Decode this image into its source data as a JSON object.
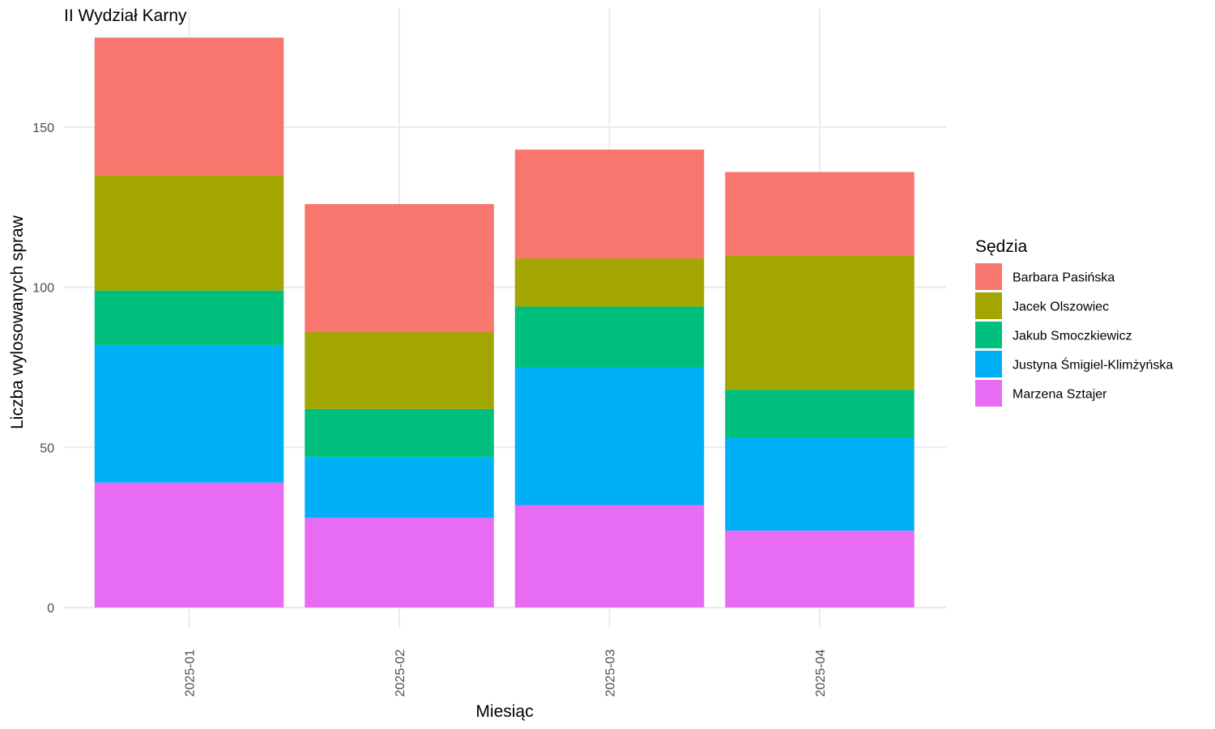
{
  "chart_data": {
    "type": "bar",
    "stacked": true,
    "title": "II Wydział Karny",
    "xlabel": "Miesiąc",
    "ylabel": "Liczba wylosowanych spraw",
    "categories": [
      "2025-01",
      "2025-02",
      "2025-03",
      "2025-04"
    ],
    "ylim": [
      0,
      180
    ],
    "yticks": [
      0,
      50,
      100,
      150
    ],
    "grid": true,
    "legend": {
      "title": "Sędzia",
      "position": "right"
    },
    "series": [
      {
        "name": "Barbara Pasińska",
        "color": "#F8766D",
        "values": [
          43,
          40,
          34,
          26
        ]
      },
      {
        "name": "Jacek Olszowiec",
        "color": "#A3A500",
        "values": [
          36,
          24,
          15,
          42
        ]
      },
      {
        "name": "Jakub Smoczkiewicz",
        "color": "#00BF7D",
        "values": [
          17,
          15,
          19,
          15
        ]
      },
      {
        "name": "Justyna Śmigiel-Klimżyńska",
        "color": "#00B0F6",
        "values": [
          43,
          19,
          43,
          29
        ]
      },
      {
        "name": "Marzena Sztajer",
        "color": "#E76BF3",
        "values": [
          39,
          28,
          32,
          24
        ]
      }
    ]
  }
}
